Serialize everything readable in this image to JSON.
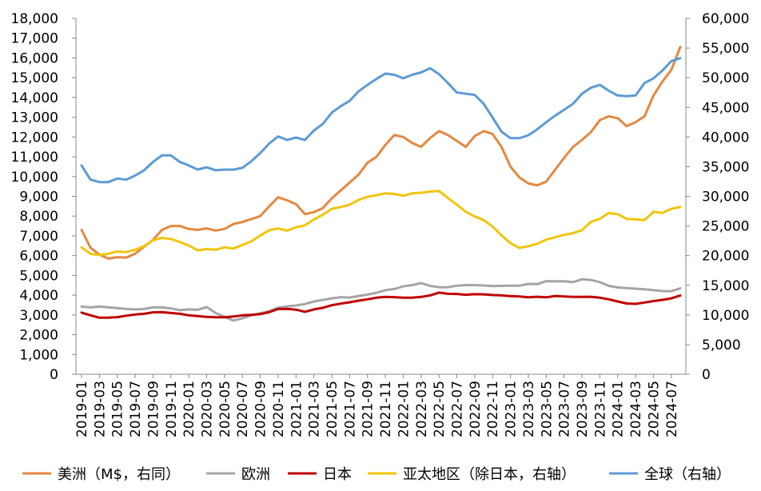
{
  "chart_data": {
    "type": "line",
    "x": [
      "2019-01",
      "2019-02",
      "2019-03",
      "2019-04",
      "2019-05",
      "2019-06",
      "2019-07",
      "2019-08",
      "2019-09",
      "2019-10",
      "2019-11",
      "2019-12",
      "2020-01",
      "2020-02",
      "2020-03",
      "2020-04",
      "2020-05",
      "2020-06",
      "2020-07",
      "2020-08",
      "2020-09",
      "2020-10",
      "2020-11",
      "2020-12",
      "2021-01",
      "2021-02",
      "2021-03",
      "2021-04",
      "2021-05",
      "2021-06",
      "2021-07",
      "2021-08",
      "2021-09",
      "2021-10",
      "2021-11",
      "2021-12",
      "2022-01",
      "2022-02",
      "2022-03",
      "2022-04",
      "2022-05",
      "2022-06",
      "2022-07",
      "2022-08",
      "2022-09",
      "2022-10",
      "2022-11",
      "2022-12",
      "2023-01",
      "2023-02",
      "2023-03",
      "2023-04",
      "2023-05",
      "2023-06",
      "2023-07",
      "2023-08",
      "2023-09",
      "2023-10",
      "2023-11",
      "2023-12",
      "2024-01",
      "2024-02",
      "2024-03",
      "2024-04",
      "2024-05",
      "2024-06",
      "2024-07",
      "2024-08"
    ],
    "x_tick_labels": [
      "2019-01",
      "2019-03",
      "2019-05",
      "2019-07",
      "2019-09",
      "2019-11",
      "2020-01",
      "2020-03",
      "2020-05",
      "2020-07",
      "2020-09",
      "2020-11",
      "2021-01",
      "2021-03",
      "2021-05",
      "2021-07",
      "2021-09",
      "2021-11",
      "2022-01",
      "2022-03",
      "2022-05",
      "2022-07",
      "2022-09",
      "2022-11",
      "2023-01",
      "2023-03",
      "2023-05",
      "2023-07",
      "2023-09",
      "2023-11",
      "2024-01",
      "2024-03",
      "2024-05",
      "2024-07"
    ],
    "y_left": {
      "range": [
        0,
        18000
      ],
      "tick_labels": [
        "0",
        "1,000",
        "2,000",
        "3,000",
        "4,000",
        "5,000",
        "6,000",
        "7,000",
        "8,000",
        "9,000",
        "10,000",
        "11,000",
        "12,000",
        "13,000",
        "14,000",
        "15,000",
        "16,000",
        "17,000",
        "18,000"
      ]
    },
    "y_right": {
      "range": [
        0,
        60000
      ],
      "tick_labels": [
        "0",
        "5,000",
        "10,000",
        "15,000",
        "20,000",
        "25,000",
        "30,000",
        "35,000",
        "40,000",
        "45,000",
        "50,000",
        "55,000",
        "60,000"
      ]
    },
    "grid": false,
    "legend_position": "bottom",
    "series": [
      {
        "name": "美洲（M$，右同）",
        "axis": "left",
        "color": "#E5883F",
        "values": [
          7300,
          6400,
          6050,
          5850,
          5920,
          5900,
          6100,
          6450,
          6800,
          7300,
          7500,
          7500,
          7350,
          7300,
          7380,
          7270,
          7350,
          7600,
          7700,
          7850,
          8000,
          8500,
          8950,
          8800,
          8600,
          8100,
          8200,
          8400,
          8900,
          9300,
          9700,
          10100,
          10700,
          11000,
          11600,
          12100,
          12000,
          11700,
          11500,
          11950,
          12300,
          12100,
          11800,
          11500,
          12050,
          12300,
          12150,
          11500,
          10500,
          9950,
          9650,
          9550,
          9750,
          10350,
          10950,
          11500,
          11850,
          12250,
          12850,
          13050,
          12950,
          12550,
          12750,
          13050,
          14100,
          14800,
          15400,
          16550
        ]
      },
      {
        "name": "欧洲",
        "axis": "left",
        "color": "#A5A5A5",
        "values": [
          3420,
          3380,
          3420,
          3380,
          3350,
          3300,
          3280,
          3300,
          3380,
          3380,
          3330,
          3240,
          3280,
          3260,
          3400,
          3100,
          2900,
          2720,
          2830,
          2980,
          3080,
          3200,
          3370,
          3430,
          3480,
          3550,
          3680,
          3760,
          3840,
          3900,
          3880,
          3960,
          4030,
          4120,
          4250,
          4310,
          4450,
          4510,
          4610,
          4470,
          4400,
          4400,
          4480,
          4510,
          4510,
          4490,
          4460,
          4470,
          4480,
          4480,
          4570,
          4560,
          4710,
          4700,
          4700,
          4660,
          4800,
          4770,
          4660,
          4470,
          4390,
          4360,
          4330,
          4300,
          4250,
          4210,
          4200,
          4350
        ]
      },
      {
        "name": "日本",
        "axis": "left",
        "color": "#C00000",
        "values": [
          3120,
          2980,
          2860,
          2860,
          2890,
          2960,
          3020,
          3060,
          3130,
          3140,
          3100,
          3060,
          2980,
          2940,
          2900,
          2880,
          2880,
          2920,
          2980,
          3000,
          3040,
          3140,
          3300,
          3310,
          3270,
          3160,
          3280,
          3360,
          3490,
          3570,
          3640,
          3720,
          3790,
          3870,
          3910,
          3900,
          3870,
          3870,
          3910,
          3990,
          4130,
          4070,
          4060,
          4020,
          4050,
          4040,
          4010,
          3990,
          3950,
          3930,
          3890,
          3920,
          3890,
          3960,
          3930,
          3910,
          3910,
          3920,
          3870,
          3790,
          3680,
          3580,
          3560,
          3630,
          3700,
          3760,
          3840,
          3980
        ]
      },
      {
        "name": "亚太地区（除日本，右轴）",
        "axis": "right",
        "color": "#F2C40C",
        "values": [
          21400,
          20300,
          20100,
          20300,
          20700,
          20600,
          21000,
          21600,
          22600,
          23000,
          22800,
          22300,
          21700,
          20900,
          21100,
          21000,
          21400,
          21200,
          21800,
          22400,
          23400,
          24300,
          24600,
          24200,
          24800,
          25100,
          26100,
          26900,
          27900,
          28200,
          28600,
          29400,
          29900,
          30200,
          30500,
          30400,
          30100,
          30500,
          30600,
          30800,
          30900,
          29700,
          28600,
          27400,
          26600,
          26000,
          24900,
          23400,
          22100,
          21300,
          21600,
          22000,
          22700,
          23100,
          23500,
          23800,
          24300,
          25700,
          26200,
          27200,
          27000,
          26200,
          26100,
          26000,
          27400,
          27200,
          27900,
          28200
        ]
      },
      {
        "name": "全球（右轴）",
        "axis": "right",
        "color": "#5B9BD5",
        "values": [
          35200,
          32800,
          32400,
          32400,
          33000,
          32800,
          33500,
          34400,
          35800,
          36900,
          36900,
          35800,
          35200,
          34500,
          34900,
          34400,
          34500,
          34500,
          34800,
          35900,
          37300,
          38900,
          40100,
          39500,
          39900,
          39500,
          41100,
          42200,
          44100,
          45200,
          46100,
          47700,
          48800,
          49800,
          50700,
          50500,
          49900,
          50500,
          50900,
          51600,
          50600,
          49100,
          47500,
          47300,
          47100,
          45600,
          43300,
          40900,
          39800,
          39800,
          40300,
          41300,
          42500,
          43600,
          44600,
          45600,
          47300,
          48300,
          48800,
          47800,
          47000,
          46900,
          47000,
          49100,
          49900,
          51200,
          52800,
          53300
        ]
      }
    ]
  }
}
